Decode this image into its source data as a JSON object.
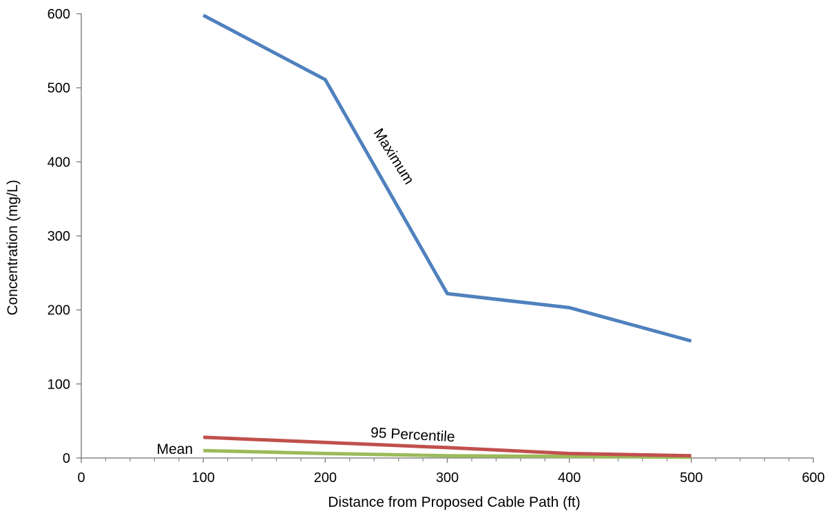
{
  "chart_data": {
    "type": "line",
    "title": "",
    "xlabel": "Distance from Proposed Cable Path (ft)",
    "ylabel": "Concentration (mg/L)",
    "xlim": [
      0,
      600
    ],
    "ylim": [
      0,
      600
    ],
    "x_ticks": [
      0,
      100,
      200,
      300,
      400,
      500,
      600
    ],
    "y_ticks": [
      0,
      100,
      200,
      300,
      400,
      500,
      600
    ],
    "grid": false,
    "series": [
      {
        "name": "Maximum",
        "color": "#4f81bd",
        "x": [
          100,
          200,
          300,
          400,
          500
        ],
        "y": [
          598,
          511,
          222,
          203,
          158
        ]
      },
      {
        "name": "95 Percentile",
        "color": "#c0504d",
        "x": [
          100,
          200,
          300,
          400,
          500
        ],
        "y": [
          28,
          21,
          14,
          6,
          3
        ]
      },
      {
        "name": "Mean",
        "color": "#9bbb59",
        "x": [
          100,
          200,
          300,
          400,
          500
        ],
        "y": [
          10,
          6,
          3,
          2,
          1
        ]
      }
    ]
  }
}
